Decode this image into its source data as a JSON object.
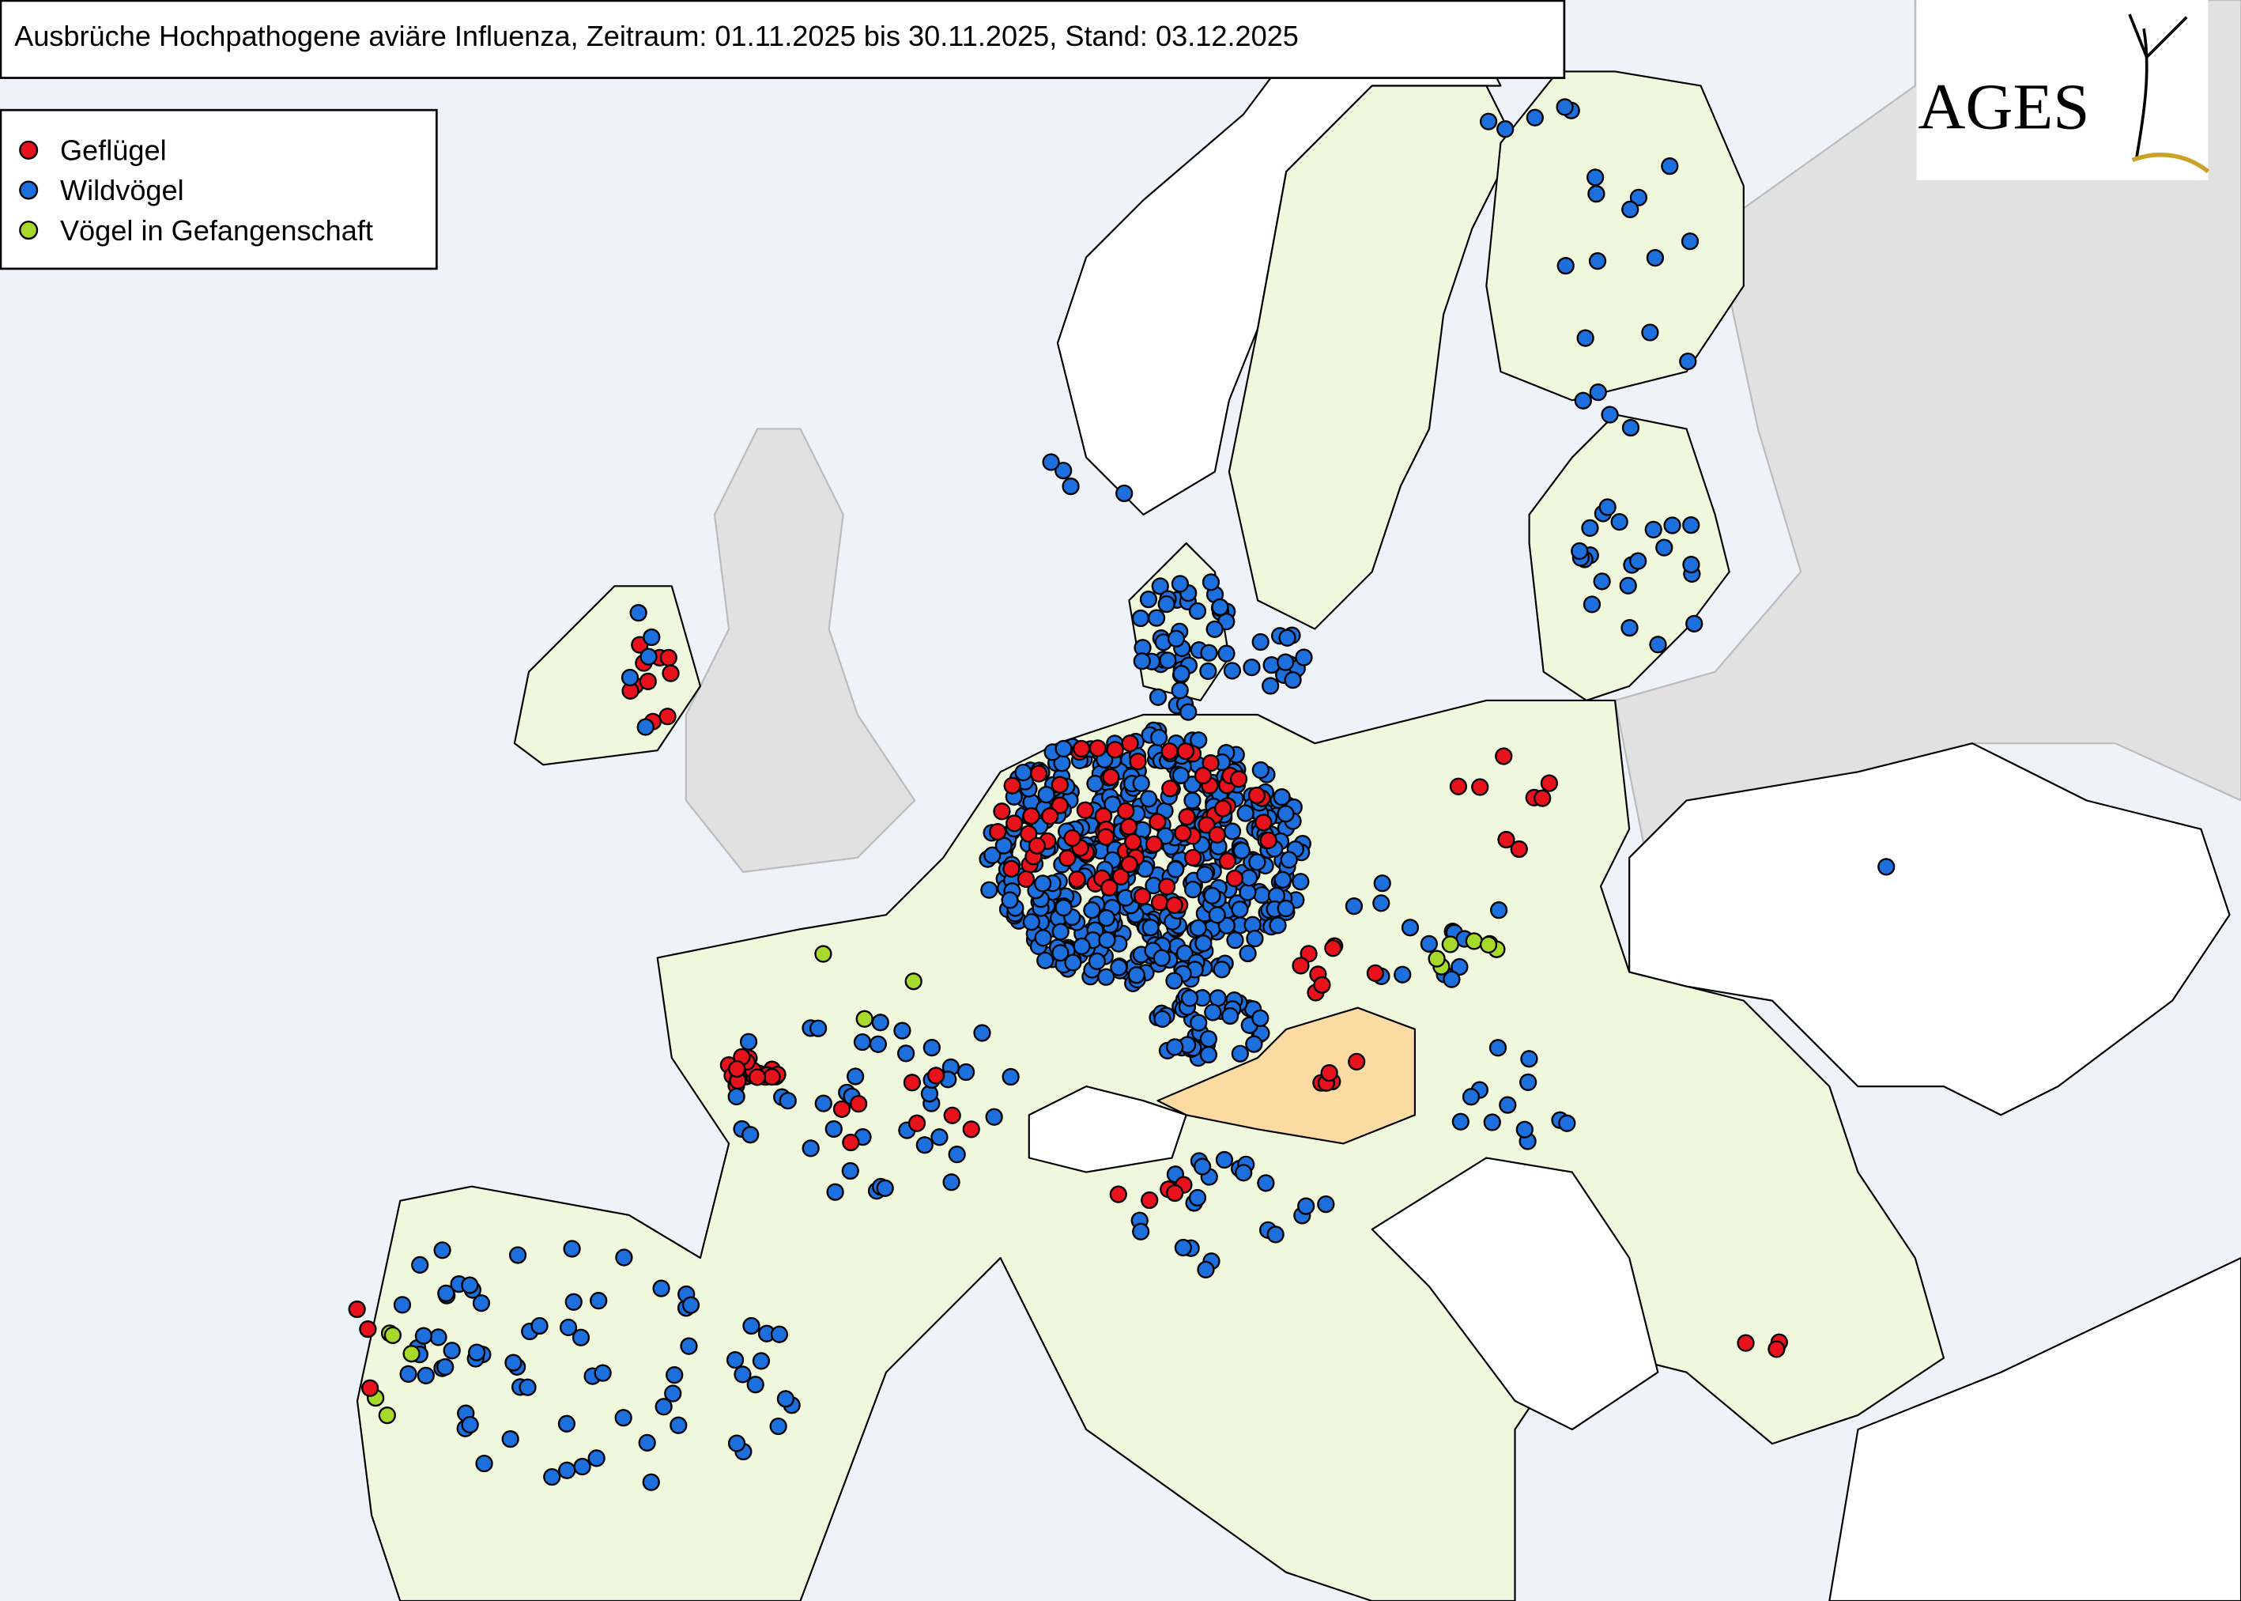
{
  "title": "Ausbrüche Hochpathogene aviäre Influenza, Zeitraum: 01.11.2025 bis 30.11.2025, Stand: 03.12.2025",
  "legend": [
    "Geflügel",
    "Wildvögel",
    "Vögel in Gefangenschaft"
  ],
  "logo": "AGES"
}
